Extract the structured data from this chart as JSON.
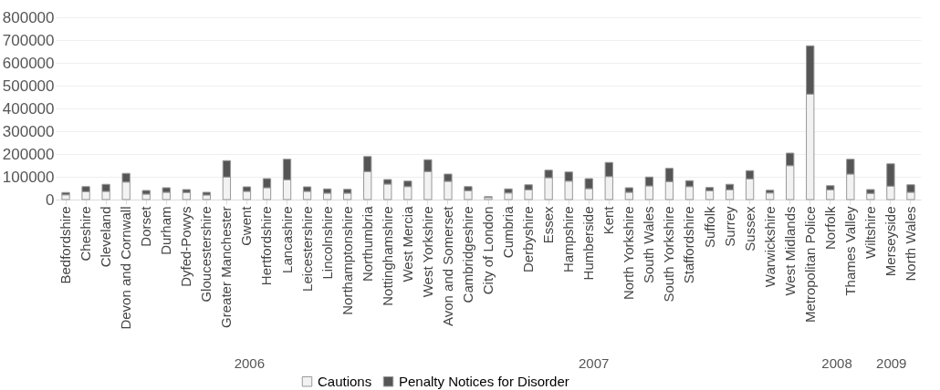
{
  "chart_data": {
    "type": "bar",
    "stacked": true,
    "categories": [
      "Bedfordshire",
      "Cheshire",
      "Cleveland",
      "Devon and Cornwall",
      "Dorset",
      "Durham",
      "Dyfed-Powys",
      "Gloucestershire",
      "Greater Manchester",
      "Gwent",
      "Hertfordshire",
      "Lancashire",
      "Leicestershire",
      "Lincolnshire",
      "Northamptonshire",
      "Northumbria",
      "Nottinghamshire",
      "West Mercia",
      "West Yorkshire",
      "Avon and Somerset",
      "Cambridgeshire",
      "City of London",
      "Cumbria",
      "Derbyshire",
      "Essex",
      "Hampshire",
      "Humberside",
      "Kent",
      "North Yorkshire",
      "South Wales",
      "South Yorkshire",
      "Staffordshire",
      "Suffolk",
      "Surrey",
      "Sussex",
      "Warwickshire",
      "West Midlands",
      "Metropolitan Police",
      "Norfolk",
      "Thames Valley",
      "Wiltshire",
      "Merseyside",
      "North Wales"
    ],
    "series": [
      {
        "name": "Cautions",
        "color": "#f2f2f2",
        "values": [
          21000,
          35000,
          36000,
          77000,
          24000,
          32000,
          31000,
          20000,
          99000,
          36000,
          52000,
          87000,
          36000,
          28000,
          28000,
          123000,
          68000,
          57000,
          123000,
          80000,
          39000,
          9000,
          29000,
          43000,
          96000,
          81000,
          48000,
          101000,
          32000,
          60000,
          79000,
          57000,
          39000,
          43000,
          91000,
          29000,
          149000,
          463000,
          43000,
          112000,
          27000,
          59000,
          32000
        ]
      },
      {
        "name": "Penalty Notices for Disorder",
        "color": "#555555",
        "values": [
          10000,
          22000,
          31000,
          38000,
          16000,
          20000,
          13000,
          12000,
          72000,
          20000,
          40000,
          90000,
          20000,
          19000,
          17000,
          66000,
          20000,
          24000,
          52000,
          32000,
          18000,
          4000,
          18000,
          22000,
          33000,
          40000,
          44000,
          62000,
          20000,
          39000,
          58000,
          26000,
          14000,
          24000,
          36000,
          12000,
          55000,
          212000,
          18000,
          65000,
          17000,
          98000,
          33000
        ]
      }
    ],
    "ylim": [
      0,
      800000
    ],
    "yticks": [
      0,
      100000,
      200000,
      300000,
      400000,
      500000,
      600000,
      700000,
      800000
    ],
    "grid": "y",
    "legend": "bottom",
    "annotations": [
      "2006",
      "2007",
      "2008",
      "2009"
    ]
  }
}
